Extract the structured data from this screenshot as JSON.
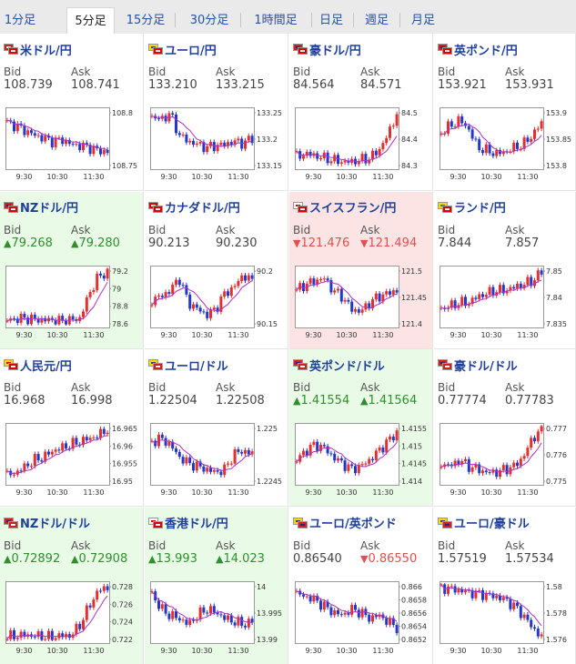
{
  "tabs": [
    {
      "label": "1分足",
      "active": false
    },
    {
      "label": "5分足",
      "active": true
    },
    {
      "label": "15分足",
      "active": false
    },
    {
      "label": "30分足",
      "active": false
    },
    {
      "label": "1時間足",
      "active": false
    },
    {
      "label": "日足",
      "active": false
    },
    {
      "label": "週足",
      "active": false
    },
    {
      "label": "月足",
      "active": false
    }
  ],
  "labels": {
    "bid": "Bid",
    "ask": "Ask"
  },
  "colors": {
    "up_candle": "#e23030",
    "down_candle": "#2338c8",
    "ma_line": "#b030c8",
    "ma2_line": "#30a0e0",
    "up_bg": "#e9fbe6",
    "down_bg": "#fde4e4",
    "link": "#1f3f9c"
  },
  "pairs": [
    {
      "name": "米ドル/円",
      "flags": "us-jp",
      "bid": "108.739",
      "ask": "108.741",
      "bid_dir": "",
      "ask_dir": "",
      "highlight": "",
      "ticks_y": [
        "108.8",
        "108.75"
      ],
      "ticks_x": [
        "9:30",
        "10:30",
        "11:30"
      ]
    },
    {
      "name": "ユーロ/円",
      "flags": "eu-jp",
      "bid": "133.210",
      "ask": "133.215",
      "bid_dir": "",
      "ask_dir": "",
      "highlight": "",
      "ticks_y": [
        "133.25",
        "133.2",
        "133.15"
      ],
      "ticks_x": [
        "9:30",
        "10:30",
        "11:30"
      ]
    },
    {
      "name": "豪ドル/円",
      "flags": "au-jp",
      "bid": "84.564",
      "ask": "84.571",
      "bid_dir": "",
      "ask_dir": "",
      "highlight": "",
      "ticks_y": [
        "84.5",
        "84.4",
        "84.3"
      ],
      "ticks_x": [
        "9:30",
        "10:30",
        "11:30"
      ]
    },
    {
      "name": "英ポンド/円",
      "flags": "gb-jp",
      "bid": "153.921",
      "ask": "153.931",
      "bid_dir": "",
      "ask_dir": "",
      "highlight": "",
      "ticks_y": [
        "153.9",
        "153.85",
        "153.8"
      ],
      "ticks_x": [
        "9:30",
        "10:30",
        "11:30"
      ]
    },
    {
      "name": "NZドル/円",
      "flags": "nz-jp",
      "bid": "79.268",
      "ask": "79.280",
      "bid_dir": "up",
      "ask_dir": "up",
      "highlight": "up",
      "ticks_y": [
        "79.2",
        "79",
        "78.8",
        "78.6"
      ],
      "ticks_x": [
        "9:30",
        "10:30",
        "11:30"
      ]
    },
    {
      "name": "カナダドル/円",
      "flags": "ca-jp",
      "bid": "90.213",
      "ask": "90.230",
      "bid_dir": "",
      "ask_dir": "",
      "highlight": "",
      "ticks_y": [
        "90.2",
        "90.15"
      ],
      "ticks_x": [
        "9:30",
        "10:30",
        "11:30"
      ]
    },
    {
      "name": "スイスフラン/円",
      "flags": "ch-jp",
      "bid": "121.476",
      "ask": "121.494",
      "bid_dir": "down",
      "ask_dir": "down",
      "highlight": "down",
      "ticks_y": [
        "121.5",
        "121.45",
        "121.4"
      ],
      "ticks_x": [
        "9:30",
        "10:30",
        "11:30"
      ]
    },
    {
      "name": "ランド/円",
      "flags": "za-jp",
      "bid": "7.844",
      "ask": "7.857",
      "bid_dir": "",
      "ask_dir": "",
      "highlight": "",
      "ticks_y": [
        "7.85",
        "7.84",
        "7.835"
      ],
      "ticks_x": [
        "9:30",
        "10:30",
        "11:30"
      ]
    },
    {
      "name": "人民元/円",
      "flags": "cn-jp",
      "bid": "16.968",
      "ask": "16.998",
      "bid_dir": "",
      "ask_dir": "",
      "highlight": "",
      "ticks_y": [
        "16.965",
        "16.96",
        "16.955",
        "16.95"
      ],
      "ticks_x": [
        "9:30",
        "10:30",
        "11:30"
      ]
    },
    {
      "name": "ユーロ/ドル",
      "flags": "eu-us",
      "bid": "1.22504",
      "ask": "1.22508",
      "bid_dir": "",
      "ask_dir": "",
      "highlight": "",
      "ticks_y": [
        "1.225",
        "1.2245"
      ],
      "ticks_x": [
        "9:30",
        "10:30",
        "11:30"
      ]
    },
    {
      "name": "英ポンド/ドル",
      "flags": "gb-us",
      "bid": "1.41554",
      "ask": "1.41564",
      "bid_dir": "up",
      "ask_dir": "up",
      "highlight": "up",
      "ticks_y": [
        "1.4155",
        "1.415",
        "1.4145",
        "1.414"
      ],
      "ticks_x": [
        "9:30",
        "10:30",
        "11:30"
      ]
    },
    {
      "name": "豪ドル/ドル",
      "flags": "au-us",
      "bid": "0.77774",
      "ask": "0.77783",
      "bid_dir": "",
      "ask_dir": "",
      "highlight": "",
      "ticks_y": [
        "0.777",
        "0.776",
        "0.775"
      ],
      "ticks_x": [
        "9:30",
        "10:30",
        "11:30"
      ]
    },
    {
      "name": "NZドル/ドル",
      "flags": "nz-us",
      "bid": "0.72892",
      "ask": "0.72908",
      "bid_dir": "up",
      "ask_dir": "up",
      "highlight": "up",
      "ticks_y": [
        "0.728",
        "0.726",
        "0.724",
        "0.722"
      ],
      "ticks_x": [
        "9:30",
        "10:30",
        "11:30"
      ]
    },
    {
      "name": "香港ドル/円",
      "flags": "hk-jp",
      "bid": "13.993",
      "ask": "14.023",
      "bid_dir": "up",
      "ask_dir": "up",
      "highlight": "up",
      "ticks_y": [
        "14",
        "13.995",
        "13.99"
      ],
      "ticks_x": [
        "9:30",
        "10:30",
        "11:30"
      ]
    },
    {
      "name": "ユーロ/英ポンド",
      "flags": "eu-gb",
      "bid": "0.86540",
      "ask": "0.86550",
      "bid_dir": "",
      "ask_dir": "down",
      "highlight": "",
      "ticks_y": [
        "0.866",
        "0.8658",
        "0.8656",
        "0.8654",
        "0.8652"
      ],
      "ticks_x": [
        "9:30",
        "10:30",
        "11:30"
      ]
    },
    {
      "name": "ユーロ/豪ドル",
      "flags": "eu-au",
      "bid": "1.57519",
      "ask": "1.57534",
      "bid_dir": "",
      "ask_dir": "",
      "highlight": "",
      "ticks_y": [
        "1.58",
        "1.578",
        "1.576"
      ],
      "ticks_x": [
        "9:30",
        "10:30",
        "11:30"
      ]
    }
  ]
}
